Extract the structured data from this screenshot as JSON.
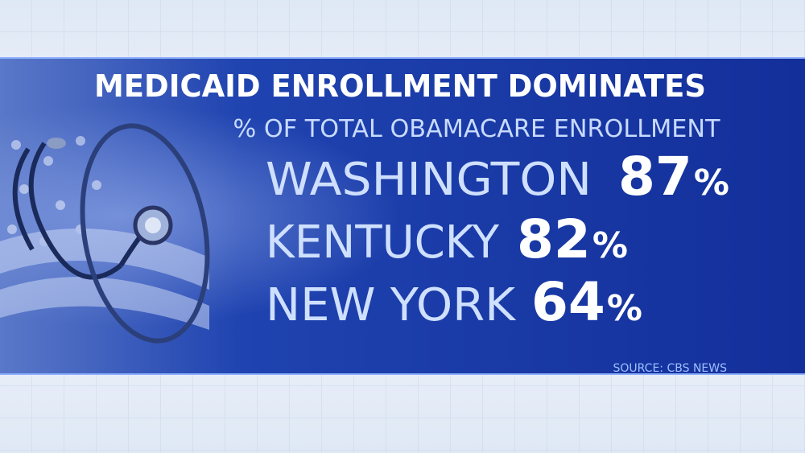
{
  "header": {
    "title": "MEDICAID ENROLLMENT DOMINATES",
    "subtitle": "% OF TOTAL OBAMACARE ENROLLMENT"
  },
  "items": [
    {
      "name": "WASHINGTON",
      "value": 87,
      "unit": "%"
    },
    {
      "name": "KENTUCKY",
      "value": 82,
      "unit": "%"
    },
    {
      "name": "NEW YORK",
      "value": 64,
      "unit": "%"
    }
  ],
  "footer": {
    "source": "SOURCE: CBS NEWS"
  }
}
